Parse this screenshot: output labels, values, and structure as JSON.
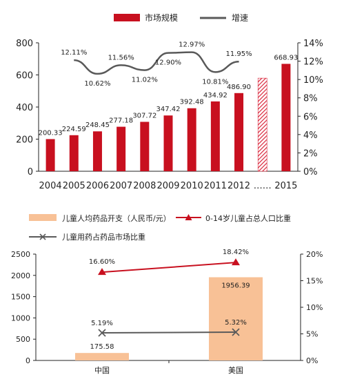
{
  "chart_data": [
    {
      "type": "bar",
      "categories": [
        "2004",
        "2005",
        "2006",
        "2007",
        "2008",
        "2009",
        "2010",
        "2011",
        "2012",
        "……",
        "2015"
      ],
      "series": [
        {
          "name": "市场规模",
          "values": [
            200.33,
            224.59,
            248.45,
            277.18,
            307.72,
            347.42,
            392.48,
            434.92,
            486.9,
            null,
            668.93
          ],
          "value_labels": [
            "200.33",
            "224.59",
            "248.45",
            "277.18",
            "307.72",
            "347.42",
            "392.48",
            "434.92",
            "486.90",
            "",
            "668.93"
          ],
          "color": "#c8101f",
          "axis": "left"
        },
        {
          "name": "增速",
          "type": "line",
          "values": [
            null,
            12.11,
            10.62,
            11.56,
            11.02,
            12.9,
            12.97,
            10.81,
            11.95,
            null,
            null
          ],
          "value_labels": [
            "",
            "12.11%",
            "10.62%",
            "11.56%",
            "11.02%",
            "12.90%",
            "12.97%",
            "10.81%",
            "11.95%",
            "",
            ""
          ],
          "color": "#595959",
          "axis": "right"
        }
      ],
      "hatched_bar": {
        "category": "……",
        "value": 580,
        "color": "#d9253a"
      },
      "left_axis": {
        "ylim": [
          0,
          800
        ],
        "ticks": [
          "0",
          "200",
          "400",
          "600",
          "800"
        ]
      },
      "right_axis": {
        "ylim": [
          0,
          14
        ],
        "ticks": [
          "0%",
          "2%",
          "4%",
          "6%",
          "8%",
          "10%",
          "12%",
          "14%"
        ]
      },
      "legend_placement": "top",
      "grid": false
    },
    {
      "type": "bar",
      "categories": [
        "中国",
        "美国"
      ],
      "series": [
        {
          "name": "儿童人均药品开支（人民币/元）",
          "values": [
            175.58,
            1956.39
          ],
          "value_labels": [
            "175.58",
            "1956.39"
          ],
          "color": "#f8c196",
          "axis": "left"
        },
        {
          "name": "0-14岁儿童占总人口比重",
          "type": "line",
          "values": [
            16.6,
            18.42
          ],
          "value_labels": [
            "16.60%",
            "18.42%"
          ],
          "color": "#c8101f",
          "marker": "triangle",
          "axis": "right"
        },
        {
          "name": "儿童用药占药品市场比重",
          "type": "line",
          "values": [
            5.19,
            5.32
          ],
          "value_labels": [
            "5.19%",
            "5.32%"
          ],
          "color": "#5a5a5a",
          "marker": "x",
          "axis": "right"
        }
      ],
      "left_axis": {
        "ylim": [
          0,
          2500
        ],
        "ticks": [
          "0",
          "500",
          "1000",
          "1500",
          "2000",
          "2500"
        ]
      },
      "right_axis": {
        "ylim": [
          0,
          20
        ],
        "ticks": [
          "0%",
          "5%",
          "10%",
          "15%",
          "20%"
        ]
      },
      "legend_placement": "top",
      "grid": false
    }
  ]
}
